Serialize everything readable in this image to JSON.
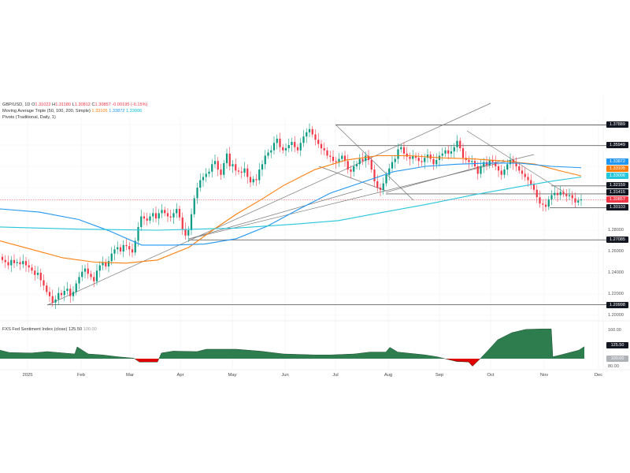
{
  "header": {
    "symbol": "GBP/USD, 1D",
    "open_label": "O",
    "open": "1.31022",
    "high_label": "H",
    "high": "1.31180",
    "low_label": "L",
    "low": "1.30812",
    "close_label": "C",
    "close": "1.30857",
    "change": "-0.00195 (-0.15%)",
    "ma_label": "Moving Average Triple (50, 100, 200, Simple)",
    "ma50": "1.33105",
    "ma100": "1.33872",
    "ma200": "1.33006",
    "pivots_label": "Pivots (Traditional, Daily, 1)"
  },
  "sentiment": {
    "label": "FXS Fed Sentiment Index (close)",
    "value": "125.50",
    "baseline": "100.00"
  },
  "colors": {
    "up": "#089981",
    "down": "#f23645",
    "ma50": "#ff7f0e",
    "ma100": "#2196f3",
    "ma200": "#26c6da",
    "trend": "#555555",
    "sent_up": "#2e7d4f",
    "sent_down": "#e00000"
  },
  "chart_data": [
    {
      "type": "candlestick",
      "title": "GBP/USD, 1D",
      "xlabel": "",
      "ylabel": "",
      "x_ticks": [
        "2025",
        "Feb",
        "Mar",
        "Apr",
        "May",
        "Jun",
        "Jul",
        "Aug",
        "Sep",
        "Oct",
        "Nov",
        "Dec"
      ],
      "y_ticks": [
        "1.20000",
        "1.22000",
        "1.24000",
        "1.26000",
        "1.28000"
      ],
      "ylim": [
        1.195,
        1.395
      ],
      "price_labels": [
        {
          "value": "1.37889",
          "kind": "pivot"
        },
        {
          "value": "1.35949",
          "kind": "pivot"
        },
        {
          "value": "1.33872",
          "kind": "ma100"
        },
        {
          "value": "1.33105",
          "kind": "ma50"
        },
        {
          "value": "1.33006",
          "kind": "ma200"
        },
        {
          "value": "1.32159",
          "kind": "pivot"
        },
        {
          "value": "1.31415",
          "kind": "pivot"
        },
        {
          "value": "1.30857",
          "kind": "last"
        },
        {
          "value": "1.30103",
          "kind": "pivot"
        },
        {
          "value": "1.27085",
          "kind": "pivot"
        },
        {
          "value": "1.20998",
          "kind": "pivot"
        }
      ],
      "closes_monthly_approx": {
        "Dec 2024": 1.255,
        "Jan": 1.24,
        "Feb": 1.26,
        "Mar": 1.29,
        "Apr": 1.33,
        "May": 1.345,
        "Jun": 1.37,
        "Jul": 1.35,
        "Aug": 1.35,
        "Sep": 1.355,
        "Oct": 1.33,
        "Nov": 1.309
      },
      "series_closes": [
        1.252,
        1.25,
        1.247,
        1.252,
        1.249,
        1.25,
        1.248,
        1.251,
        1.247,
        1.245,
        1.242,
        1.238,
        1.24,
        1.233,
        1.228,
        1.222,
        1.218,
        1.212,
        1.215,
        1.221,
        1.219,
        1.223,
        1.225,
        1.218,
        1.222,
        1.23,
        1.236,
        1.241,
        1.244,
        1.239,
        1.236,
        1.232,
        1.242,
        1.247,
        1.25,
        1.246,
        1.251,
        1.258,
        1.262,
        1.264,
        1.26,
        1.266,
        1.265,
        1.262,
        1.259,
        1.27,
        1.283,
        1.293,
        1.291,
        1.289,
        1.293,
        1.296,
        1.291,
        1.296,
        1.299,
        1.296,
        1.293,
        1.292,
        1.296,
        1.3,
        1.292,
        1.281,
        1.275,
        1.28,
        1.295,
        1.31,
        1.32,
        1.327,
        1.33,
        1.333,
        1.335,
        1.342,
        1.345,
        1.337,
        1.332,
        1.343,
        1.352,
        1.34,
        1.342,
        1.336,
        1.335,
        1.334,
        1.338,
        1.33,
        1.325,
        1.328,
        1.327,
        1.337,
        1.342,
        1.35,
        1.353,
        1.355,
        1.362,
        1.366,
        1.358,
        1.355,
        1.357,
        1.36,
        1.363,
        1.358,
        1.355,
        1.362,
        1.368,
        1.372,
        1.375,
        1.37,
        1.365,
        1.361,
        1.357,
        1.355,
        1.35,
        1.349,
        1.345,
        1.344,
        1.347,
        1.35,
        1.345,
        1.337,
        1.335,
        1.34,
        1.342,
        1.347,
        1.345,
        1.35,
        1.346,
        1.337,
        1.326,
        1.32,
        1.318,
        1.324,
        1.332,
        1.338,
        1.344,
        1.347,
        1.356,
        1.358,
        1.352,
        1.349,
        1.347,
        1.35,
        1.348,
        1.345,
        1.344,
        1.348,
        1.351,
        1.347,
        1.342,
        1.346,
        1.35,
        1.352,
        1.355,
        1.352,
        1.354,
        1.358,
        1.364,
        1.357,
        1.348,
        1.346,
        1.344,
        1.345,
        1.34,
        1.333,
        1.34,
        1.344,
        1.341,
        1.346,
        1.344,
        1.34,
        1.336,
        1.332,
        1.337,
        1.342,
        1.346,
        1.343,
        1.34,
        1.336,
        1.333,
        1.33,
        1.327,
        1.323,
        1.318,
        1.311,
        1.305,
        1.304,
        1.302,
        1.309,
        1.313,
        1.315,
        1.313,
        1.316,
        1.314,
        1.312,
        1.313,
        1.31,
        1.306,
        1.308,
        1.309
      ]
    },
    {
      "type": "area",
      "title": "FXS Fed Sentiment Index (close)",
      "y_ticks": [
        "80.00",
        "100.00",
        "125.50",
        "160.00"
      ],
      "ylim": [
        75,
        170
      ],
      "baseline": 100,
      "last_value": 125.5,
      "series_approx": [
        {
          "x": "Dec 2024",
          "y": 118
        },
        {
          "x": "Jan",
          "y": 112
        },
        {
          "x": "late Jan",
          "y": 125
        },
        {
          "x": "Feb",
          "y": 108
        },
        {
          "x": "Mar",
          "y": 100
        },
        {
          "x": "mid Mar",
          "y": 93
        },
        {
          "x": "Apr",
          "y": 113
        },
        {
          "x": "May",
          "y": 118
        },
        {
          "x": "Jun",
          "y": 109
        },
        {
          "x": "Jul",
          "y": 108
        },
        {
          "x": "Aug",
          "y": 124
        },
        {
          "x": "Sep",
          "y": 100
        },
        {
          "x": "mid Sep",
          "y": 84
        },
        {
          "x": "Oct",
          "y": 140
        },
        {
          "x": "late Oct",
          "y": 163
        },
        {
          "x": "Nov",
          "y": 105
        },
        {
          "x": "mid Nov",
          "y": 125.5
        }
      ]
    }
  ]
}
